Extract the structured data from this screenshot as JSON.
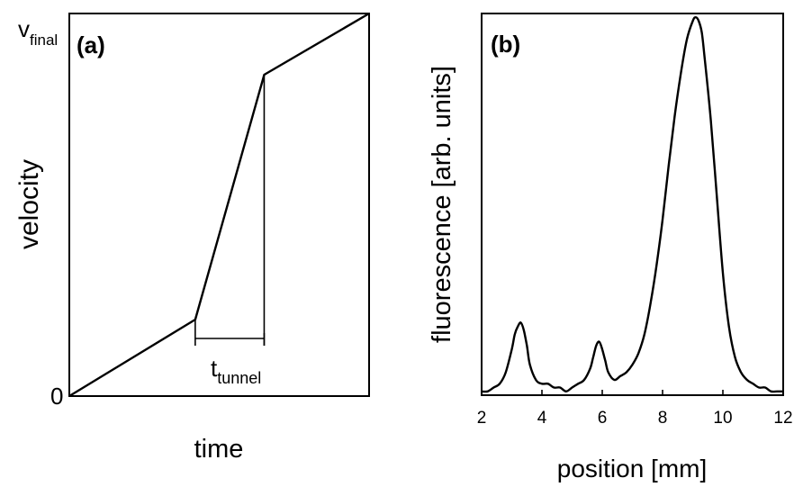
{
  "chart_data": [
    {
      "type": "line",
      "panel_label": "(a)",
      "title": "",
      "xlabel": "time",
      "ylabel": "velocity",
      "y_tick_labels": {
        "zero": "0",
        "final": "v",
        "final_subscript": "final"
      },
      "annotation": {
        "text": "t",
        "subscript": "tunnel"
      },
      "xlim": [
        0,
        1
      ],
      "ylim": [
        0,
        1
      ],
      "grid": false,
      "series": [
        {
          "x": [
            0,
            0.42,
            0.65,
            1.0
          ],
          "y": [
            0,
            0.2,
            0.84,
            1.0
          ]
        }
      ],
      "tunnel_interval": [
        0.42,
        0.65
      ]
    },
    {
      "type": "line",
      "panel_label": "(b)",
      "title": "",
      "xlabel": "position [mm]",
      "ylabel": "fluorescence [arb. units]",
      "xlim": [
        2,
        12
      ],
      "ylim": [
        0,
        1.0
      ],
      "x_ticks": [
        "2",
        "4",
        "6",
        "8",
        "10",
        "12"
      ],
      "grid": false,
      "series": [
        {
          "x": [
            2.0,
            2.2,
            2.4,
            2.6,
            2.8,
            3.0,
            3.1,
            3.2,
            3.3,
            3.4,
            3.5,
            3.6,
            3.8,
            4.0,
            4.2,
            4.4,
            4.6,
            4.8,
            5.0,
            5.2,
            5.4,
            5.6,
            5.7,
            5.8,
            5.9,
            6.0,
            6.1,
            6.2,
            6.4,
            6.6,
            6.8,
            7.0,
            7.2,
            7.4,
            7.6,
            7.8,
            8.0,
            8.2,
            8.4,
            8.6,
            8.8,
            9.0,
            9.1,
            9.2,
            9.3,
            9.4,
            9.6,
            9.8,
            10.0,
            10.2,
            10.4,
            10.6,
            10.8,
            11.0,
            11.2,
            11.4,
            11.6,
            11.8,
            12.0
          ],
          "y": [
            0.01,
            0.01,
            0.02,
            0.03,
            0.06,
            0.12,
            0.16,
            0.18,
            0.19,
            0.17,
            0.13,
            0.08,
            0.04,
            0.03,
            0.03,
            0.02,
            0.02,
            0.01,
            0.02,
            0.03,
            0.04,
            0.07,
            0.1,
            0.13,
            0.14,
            0.12,
            0.09,
            0.06,
            0.04,
            0.05,
            0.06,
            0.08,
            0.11,
            0.16,
            0.24,
            0.34,
            0.46,
            0.6,
            0.73,
            0.84,
            0.93,
            0.98,
            0.99,
            0.98,
            0.95,
            0.88,
            0.72,
            0.52,
            0.32,
            0.18,
            0.1,
            0.06,
            0.04,
            0.03,
            0.02,
            0.02,
            0.01,
            0.01,
            0.01
          ]
        }
      ]
    }
  ]
}
